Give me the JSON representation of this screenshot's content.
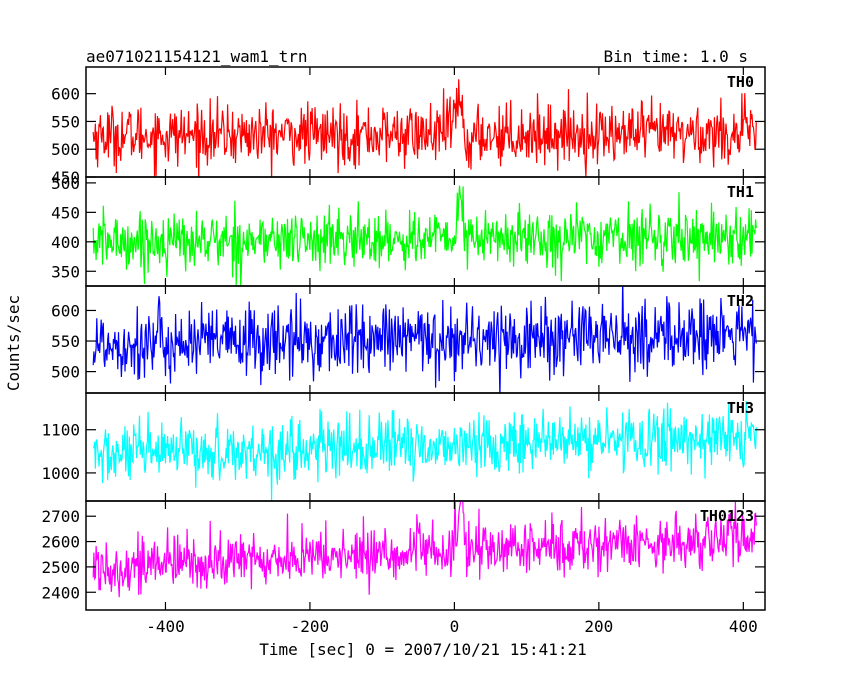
{
  "chart_data": {
    "type": "line",
    "title": "ae071021154121_wam1_trn",
    "subtitle": "Bin time: 1.0 s",
    "xlabel": "Time [sec] 0 = 2007/10/21 15:41:21",
    "ylabel": "Counts/sec",
    "xlim": [
      -510,
      430
    ],
    "x_ticks": [
      -400,
      -200,
      0,
      200,
      400
    ],
    "grid": false,
    "panels": [
      {
        "name": "TH0",
        "color": "#ff0000",
        "ylim": [
          450,
          648
        ],
        "y_ticks": [
          450,
          500,
          550,
          600
        ],
        "series": {
          "mean_start": 525,
          "mean_end": 528,
          "noise": 27,
          "features": [
            {
              "x": 0,
              "width": 10,
              "delta": 25
            },
            {
              "x": 8,
              "width": 4,
              "delta": 55
            },
            {
              "x": 22,
              "width": 8,
              "delta": -20
            }
          ]
        }
      },
      {
        "name": "TH1",
        "color": "#00ff00",
        "ylim": [
          325,
          510
        ],
        "y_ticks": [
          350,
          400,
          450,
          500
        ],
        "series": {
          "mean_start": 400,
          "mean_end": 410,
          "noise": 24,
          "features": [
            {
              "x": 5,
              "width": 4,
              "delta": 40
            },
            {
              "x": 9,
              "width": 3,
              "delta": 60
            }
          ]
        }
      },
      {
        "name": "TH2",
        "color": "#0000ff",
        "ylim": [
          465,
          640
        ],
        "y_ticks": [
          500,
          550,
          600
        ],
        "series": {
          "mean_start": 545,
          "mean_end": 560,
          "noise": 30,
          "features": []
        }
      },
      {
        "name": "TH3",
        "color": "#00ffff",
        "ylim": [
          935,
          1185
        ],
        "y_ticks": [
          1000,
          1100
        ],
        "series": {
          "mean_start": 1040,
          "mean_end": 1085,
          "noise": 35,
          "features": []
        }
      },
      {
        "name": "TH0123",
        "color": "#ff00ff",
        "ylim": [
          2330,
          2760
        ],
        "y_ticks": [
          2400,
          2500,
          2600,
          2700
        ],
        "series": {
          "mean_start": 2500,
          "mean_end": 2615,
          "noise": 55,
          "features": [
            {
              "x": 5,
              "width": 6,
              "delta": 90
            },
            {
              "x": 10,
              "width": 3,
              "delta": 180
            }
          ]
        }
      }
    ]
  }
}
